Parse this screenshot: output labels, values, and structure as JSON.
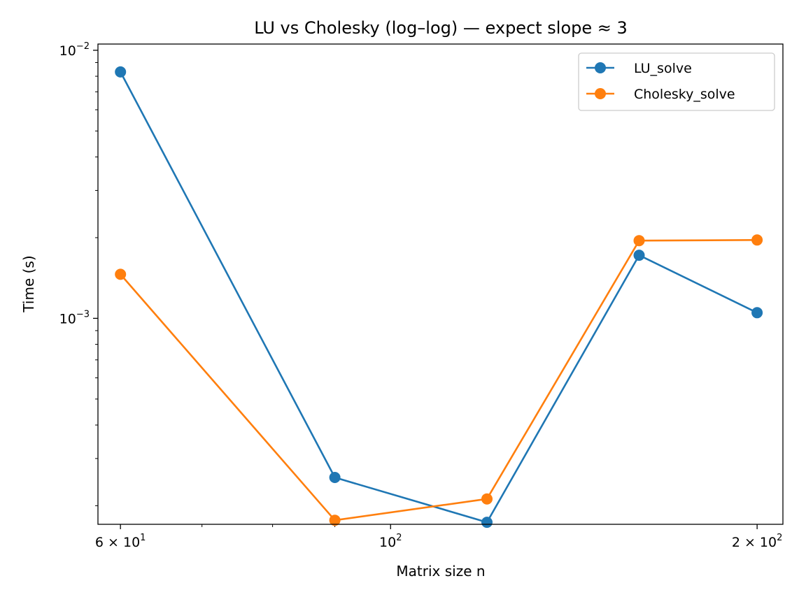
{
  "chart_data": {
    "type": "line",
    "title": "LU vs Cholesky (log–log) — expect slope ≈ 3",
    "xlabel": "Matrix size n",
    "ylabel": "Time (s)",
    "xscale": "log",
    "yscale": "log",
    "xlim": [
      57.5,
      210
    ],
    "ylim": [
      0.0001705,
      0.01055
    ],
    "grid": false,
    "legend_position": "top-right",
    "x": [
      60,
      90,
      120,
      160,
      200
    ],
    "series": [
      {
        "name": "LU_solve",
        "color": "#1f77b4",
        "values": [
          0.0083,
          0.000255,
          0.0001735,
          0.00172,
          0.00105
        ]
      },
      {
        "name": "Cholesky_solve",
        "color": "#ff7f0e",
        "values": [
          0.00146,
          0.0001765,
          0.000212,
          0.00195,
          0.00196
        ]
      }
    ],
    "x_ticks": [
      {
        "value": 60,
        "base": "6 × 10",
        "exp": "1"
      },
      {
        "value": 100,
        "base": "10",
        "exp": "2"
      },
      {
        "value": 200,
        "base": "2 × 10",
        "exp": "2"
      }
    ],
    "y_ticks": [
      {
        "value": 0.01,
        "base": "10",
        "exp": "−2"
      },
      {
        "value": 0.001,
        "base": "10",
        "exp": "−3"
      }
    ]
  }
}
